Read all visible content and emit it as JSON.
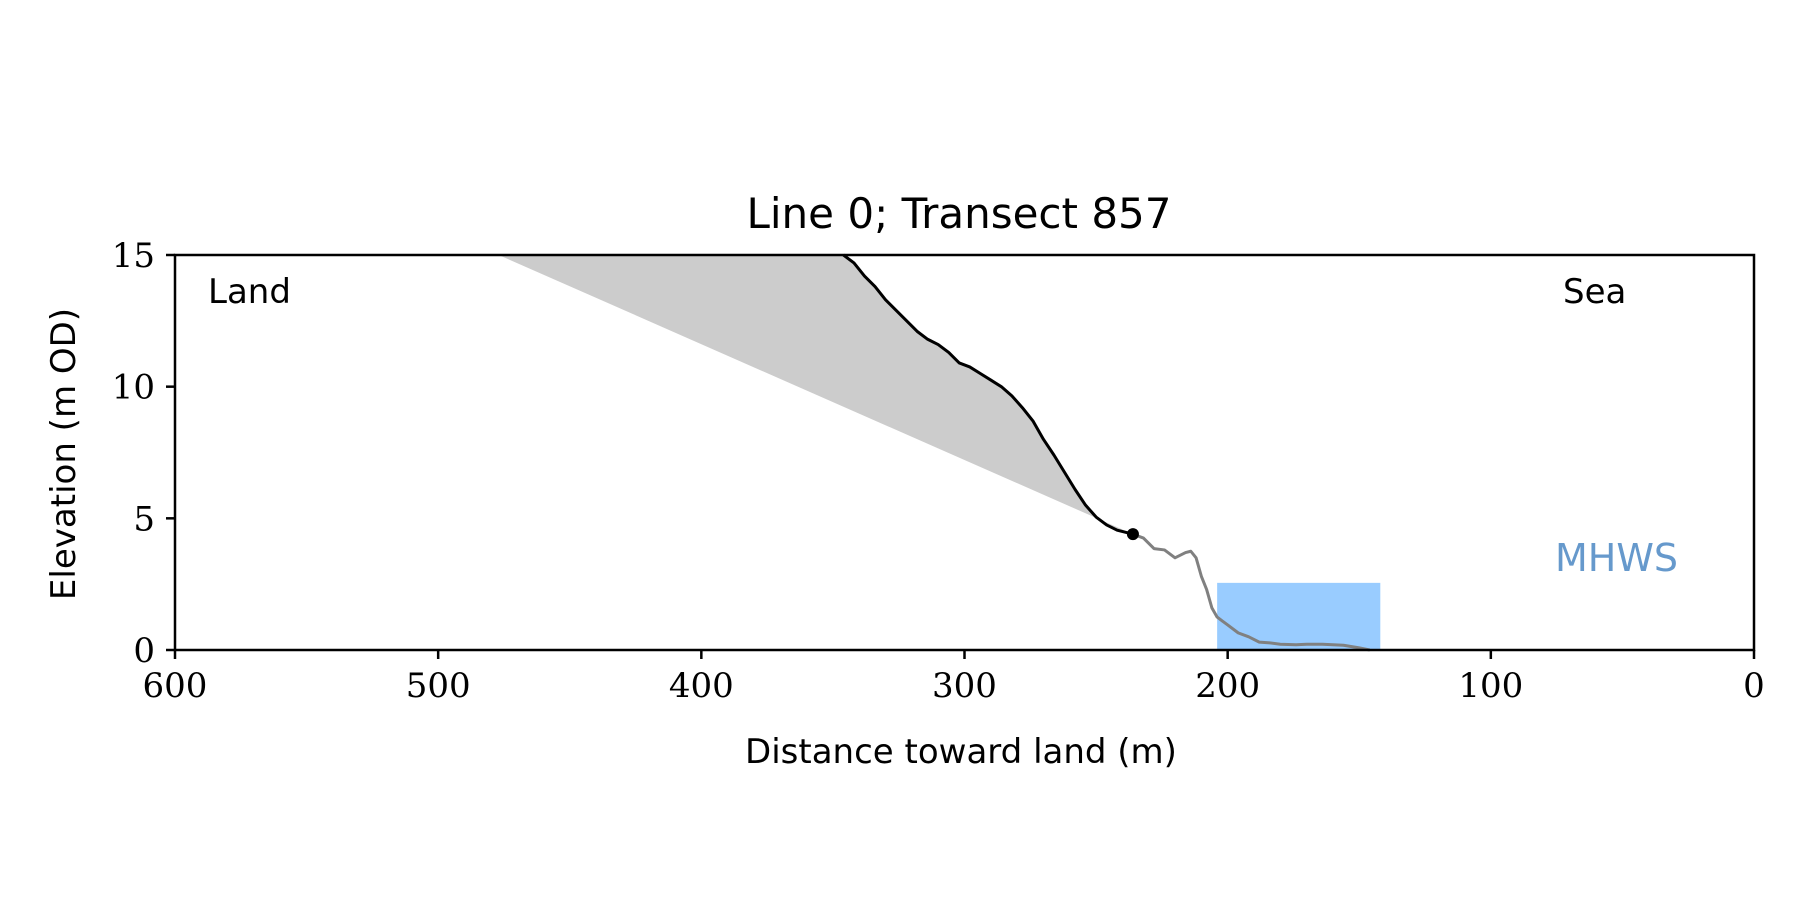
{
  "chart_data": {
    "type": "line",
    "title": "Line 0; Transect 857",
    "xlabel": "Distance toward land (m)",
    "ylabel": "Elevation (m OD)",
    "xlim": [
      600,
      0
    ],
    "ylim": [
      0,
      15
    ],
    "x_ticks": [
      600,
      500,
      400,
      300,
      200,
      100,
      0
    ],
    "y_ticks": [
      0,
      5,
      10,
      15
    ],
    "grid": false,
    "annotations": {
      "land": "Land",
      "sea": "Sea",
      "mhws": "MHWS"
    },
    "colors": {
      "cliff_line": "#000000",
      "beach_line": "#808080",
      "shaded_area": "#cccccc",
      "mhws_box": "#99ccff",
      "mhws_text": "#6699cc"
    },
    "series": [
      {
        "name": "",
        "style": "cliff",
        "x": [
          346,
          342,
          338,
          334,
          330,
          326,
          322,
          318,
          314,
          310,
          306,
          302,
          298,
          294,
          290,
          286,
          282,
          278,
          274,
          270,
          266,
          262,
          258,
          254,
          250,
          246,
          242,
          238,
          236
        ],
        "y": [
          15.0,
          14.7,
          14.2,
          13.8,
          13.3,
          12.9,
          12.5,
          12.1,
          11.8,
          11.6,
          11.3,
          10.9,
          10.75,
          10.5,
          10.25,
          10.0,
          9.65,
          9.2,
          8.7,
          8.0,
          7.4,
          6.75,
          6.1,
          5.5,
          5.05,
          4.75,
          4.55,
          4.45,
          4.4
        ]
      },
      {
        "name": "",
        "style": "beach",
        "x": [
          236,
          232,
          228,
          224,
          220,
          216,
          214,
          212,
          210,
          208,
          206,
          204,
          202,
          200,
          196,
          192,
          188,
          184,
          180,
          174,
          170,
          164,
          156,
          150,
          146
        ],
        "y": [
          4.4,
          4.25,
          3.85,
          3.8,
          3.5,
          3.7,
          3.75,
          3.5,
          2.8,
          2.3,
          1.6,
          1.25,
          1.1,
          0.95,
          0.65,
          0.5,
          0.3,
          0.27,
          0.22,
          0.2,
          0.22,
          0.22,
          0.18,
          0.08,
          0.0
        ]
      }
    ],
    "shaded_polygon": {
      "x": [
        477,
        346,
        342,
        338,
        334,
        330,
        326,
        322,
        318,
        314,
        310,
        306,
        302,
        298,
        294,
        290,
        286,
        282,
        278,
        274,
        270,
        266,
        262,
        258,
        254,
        250,
        246,
        242,
        238,
        236
      ],
      "y": [
        15.0,
        15.0,
        14.7,
        14.2,
        13.8,
        13.3,
        12.9,
        12.5,
        12.1,
        11.8,
        11.6,
        11.3,
        10.9,
        10.75,
        10.5,
        10.25,
        10.0,
        9.65,
        9.2,
        8.7,
        8.0,
        7.4,
        6.75,
        6.1,
        5.5,
        5.05,
        4.75,
        4.55,
        4.45,
        4.4
      ]
    },
    "marker_point": {
      "x": 236,
      "y": 4.4
    },
    "mhws_box": {
      "x0": 204,
      "x1": 142,
      "y0": 0,
      "y1": 2.55
    }
  }
}
